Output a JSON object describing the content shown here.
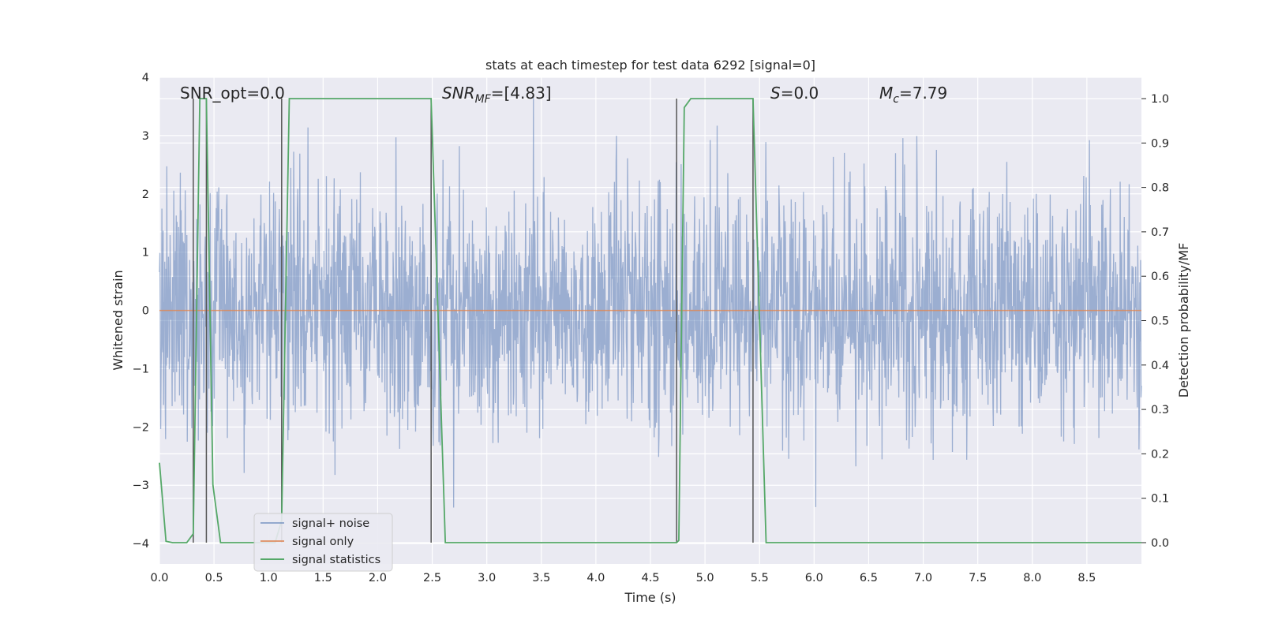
{
  "chart_data": {
    "type": "line",
    "title": "stats at each timestep for test data 6292 [signal=0]",
    "xlabel": "Time (s)",
    "ylabel": "Whitened strain",
    "y2label": "Detection probability/MF",
    "xlim": [
      0,
      9.0
    ],
    "ylim": [
      -4.35,
      4.0
    ],
    "y2lim": [
      -0.048,
      1.048
    ],
    "xticks": [
      "0.0",
      "0.5",
      "1.0",
      "1.5",
      "2.0",
      "2.5",
      "3.0",
      "3.5",
      "4.0",
      "4.5",
      "5.0",
      "5.5",
      "6.0",
      "6.5",
      "7.0",
      "7.5",
      "8.0",
      "8.5"
    ],
    "yticks": [
      "4",
      "3",
      "2",
      "1",
      "0",
      "−1",
      "−2",
      "−3",
      "−4"
    ],
    "y2ticks": [
      "1.0",
      "0.9",
      "0.8",
      "0.7",
      "0.6",
      "0.5",
      "0.4",
      "0.3",
      "0.2",
      "0.1",
      "0.0"
    ],
    "grid": true,
    "legend_position": "lower-left",
    "annotations": {
      "snr_opt": "SNR_opt=0.0",
      "snr_mf_prefix": "SNR",
      "snr_mf_sub": "MF",
      "snr_mf_value": "=[4.83]",
      "s_prefix": "S",
      "s_value": "=0.0",
      "mc_prefix": "M",
      "mc_sub": "c",
      "mc_value": "=7.79"
    },
    "colors": {
      "background": "#eaeaf2",
      "noise": "#4c72b0",
      "signal": "#dd8452",
      "stats": "#55a868",
      "vline": "#555555"
    },
    "series": [
      {
        "name": "signal+ noise",
        "kind": "noise",
        "amplitude_profile": "whitened gaussian noise, ~±2 typical, spikes to ±3.6"
      },
      {
        "name": "signal only",
        "x": [
          0.0,
          9.0
        ],
        "y": [
          0.0,
          0.0
        ]
      },
      {
        "name": "signal statistics",
        "axis": "right",
        "x": [
          0.0,
          0.06,
          0.12,
          0.25,
          0.31,
          0.37,
          0.43,
          0.49,
          0.56,
          0.63,
          1.06,
          1.12,
          1.19,
          1.25,
          2.49,
          2.62,
          2.69,
          4.74,
          4.76,
          4.81,
          4.87,
          5.44,
          5.56,
          5.62,
          9.0
        ],
        "y": [
          0.18,
          0.003,
          0.0,
          0.0,
          0.02,
          1.0,
          1.0,
          0.13,
          0.0,
          0.0,
          0.0,
          0.05,
          1.0,
          1.0,
          1.0,
          0.0,
          0.0,
          0.0,
          0.005,
          0.98,
          1.0,
          1.0,
          0.0,
          0.0,
          0.0
        ]
      }
    ],
    "vertical_lines_x": [
      0.31,
      0.43,
      1.12,
      2.49,
      4.74,
      5.44
    ]
  }
}
